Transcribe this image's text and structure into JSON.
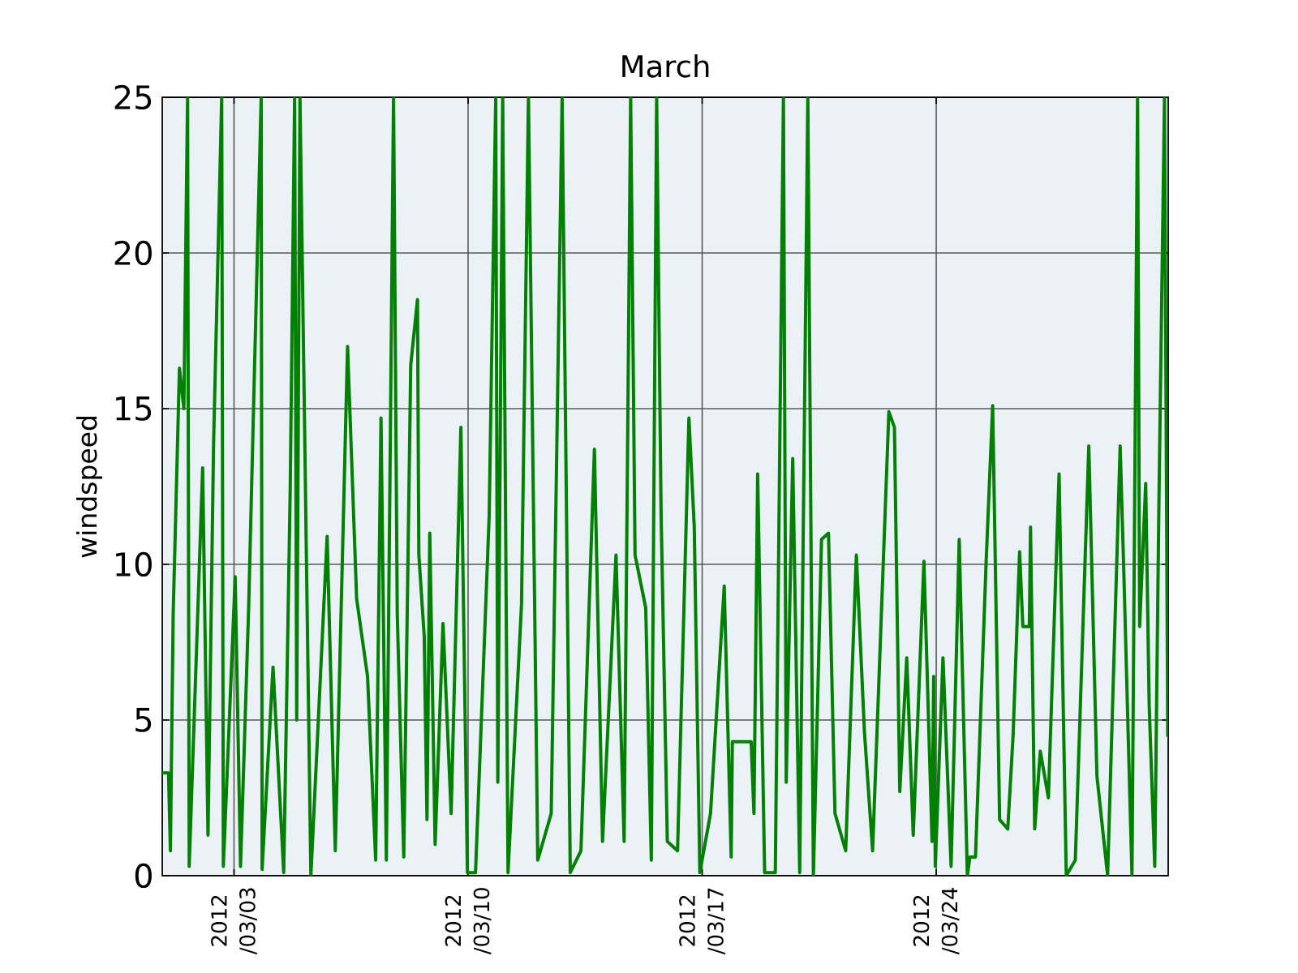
{
  "chart_data": {
    "type": "line",
    "title": "March",
    "ylabel": "windspeed",
    "color": "#008000",
    "grid": true,
    "xlim": [
      "2012-02-29T20:30",
      "2012-03-30T22:30"
    ],
    "xticks": [
      {
        "value": "2012-03-03",
        "label": "2012 /03/03"
      },
      {
        "value": "2012-03-10",
        "label": "2012 /03/10"
      },
      {
        "value": "2012-03-17",
        "label": "2012 /03/17"
      },
      {
        "value": "2012-03-24",
        "label": "2012 /03/24"
      }
    ],
    "ylim": [
      0,
      25
    ],
    "yticks": [
      0,
      5,
      10,
      15,
      20,
      25
    ],
    "x": [
      "2012-02-29T21:00",
      "2012-03-01T01:00",
      "2012-03-01T02:20",
      "2012-03-01T04:20",
      "2012-03-01T08:50",
      "2012-03-01T12:00",
      "2012-03-01T14:40",
      "2012-03-01T15:50",
      "2012-03-02T01:30",
      "2012-03-02T05:20",
      "2012-03-02T09:20",
      "2012-03-02T15:10",
      "2012-03-02T16:20",
      "2012-03-03T00:50",
      "2012-03-03T04:40",
      "2012-03-03T10:30",
      "2012-03-03T19:30",
      "2012-03-03T20:10",
      "2012-03-04T04:00",
      "2012-03-04T11:40",
      "2012-03-04T16:20",
      "2012-03-04T19:30",
      "2012-03-04T21:00",
      "2012-03-04T23:20",
      "2012-03-05T07:10",
      "2012-03-05T18:50",
      "2012-03-06T00:40",
      "2012-03-06T09:30",
      "2012-03-06T16:00",
      "2012-03-06T23:50",
      "2012-03-07T05:40",
      "2012-03-07T09:30",
      "2012-03-07T13:20",
      "2012-03-07T18:30",
      "2012-03-07T21:10",
      "2012-03-08T01:50",
      "2012-03-08T06:50",
      "2012-03-08T11:40",
      "2012-03-08T12:40",
      "2012-03-08T16:30",
      "2012-03-08T18:30",
      "2012-03-08T20:30",
      "2012-03-09T00:20",
      "2012-03-09T06:00",
      "2012-03-09T11:50",
      "2012-03-09T18:50",
      "2012-03-09T23:30",
      "2012-03-10T05:20",
      "2012-03-10T15:10",
      "2012-03-10T19:50",
      "2012-03-10T21:20",
      "2012-03-11T00:50",
      "2012-03-11T04:40",
      "2012-03-11T14:20",
      "2012-03-11T19:20",
      "2012-03-12T02:00",
      "2012-03-12T11:40",
      "2012-03-12T19:30",
      "2012-03-13T01:20",
      "2012-03-13T09:00",
      "2012-03-13T18:40",
      "2012-03-14T00:30",
      "2012-03-14T10:10",
      "2012-03-14T16:00",
      "2012-03-14T20:40",
      "2012-03-14T23:50",
      "2012-03-15T07:30",
      "2012-03-15T11:30",
      "2012-03-15T15:20",
      "2012-03-15T18:30",
      "2012-03-15T23:00",
      "2012-03-16T06:20",
      "2012-03-16T14:30",
      "2012-03-16T18:20",
      "2012-03-16T22:20",
      "2012-03-17T06:00",
      "2012-03-17T15:50",
      "2012-03-17T20:50",
      "2012-03-17T21:40",
      "2012-03-18T11:10",
      "2012-03-18T13:10",
      "2012-03-18T15:50",
      "2012-03-18T20:50",
      "2012-03-19T04:30",
      "2012-03-19T10:20",
      "2012-03-19T12:20",
      "2012-03-19T17:00",
      "2012-03-19T22:00",
      "2012-03-20T03:50",
      "2012-03-20T07:50",
      "2012-03-20T13:40",
      "2012-03-20T18:40",
      "2012-03-20T23:20",
      "2012-03-21T07:00",
      "2012-03-21T14:40",
      "2012-03-21T20:30",
      "2012-03-22T02:20",
      "2012-03-22T14:00",
      "2012-03-22T18:00",
      "2012-03-22T21:50",
      "2012-03-23T02:50",
      "2012-03-23T07:30",
      "2012-03-23T15:10",
      "2012-03-23T21:00",
      "2012-03-23T22:10",
      "2012-03-23T23:20",
      "2012-03-24T04:50",
      "2012-03-24T10:40",
      "2012-03-24T16:30",
      "2012-03-24T22:20",
      "2012-03-25T00:10",
      "2012-03-25T04:10",
      "2012-03-25T11:50",
      "2012-03-25T16:30",
      "2012-03-25T21:30",
      "2012-03-26T03:20",
      "2012-03-26T07:10",
      "2012-03-26T11:50",
      "2012-03-26T14:10",
      "2012-03-26T18:50",
      "2012-03-26T19:40",
      "2012-03-26T22:40",
      "2012-03-27T02:40",
      "2012-03-27T08:30",
      "2012-03-27T16:10",
      "2012-03-27T21:20",
      "2012-03-28T03:50",
      "2012-03-28T13:30",
      "2012-03-28T19:20",
      "2012-03-29T03:00",
      "2012-03-29T12:00",
      "2012-03-29T14:40",
      "2012-03-29T20:30",
      "2012-03-30T00:30",
      "2012-03-30T02:00",
      "2012-03-30T06:20",
      "2012-03-30T08:50",
      "2012-03-30T12:50",
      "2012-03-30T15:50",
      "2012-03-30T19:50",
      "2012-03-30T22:10"
    ],
    "values": [
      3.3,
      3.3,
      0.8,
      8.4,
      16.3,
      15.0,
      25,
      0.3,
      13.1,
      1.3,
      13.9,
      25,
      0.3,
      9.6,
      0.3,
      8.6,
      25,
      0.2,
      6.7,
      0.1,
      12.4,
      25,
      5,
      25,
      0,
      10.9,
      0.8,
      17.0,
      8.9,
      6.4,
      0.5,
      14.7,
      0.5,
      25,
      8.4,
      0.6,
      16.4,
      18.5,
      10.3,
      7.7,
      1.8,
      11.0,
      1.0,
      8.1,
      2.0,
      14.4,
      0.1,
      0.1,
      11.6,
      25,
      3,
      25,
      0.1,
      8.7,
      25,
      0.5,
      2.0,
      25,
      0.1,
      0.8,
      13.7,
      1.1,
      10.3,
      1.1,
      25,
      10.3,
      8.6,
      0.5,
      25,
      11.7,
      1.1,
      0.8,
      14.7,
      11.2,
      0.1,
      2.0,
      9.3,
      0.6,
      4.3,
      4.3,
      2.0,
      12.9,
      0.1,
      0.1,
      25,
      3,
      13.4,
      0.1,
      25,
      0,
      10.8,
      11.0,
      2.0,
      0.8,
      10.3,
      4.6,
      0.8,
      14.9,
      14.4,
      2.7,
      7.0,
      1.3,
      10.1,
      1.1,
      6.4,
      0.3,
      7.0,
      0.3,
      10.8,
      0,
      0.6,
      0.6,
      10.1,
      15.1,
      1.8,
      1.5,
      4.5,
      10.4,
      8.0,
      8.0,
      11.2,
      1.5,
      4.0,
      2.5,
      12.9,
      0,
      0.5,
      13.8,
      3.2,
      0,
      13.8,
      9.7,
      0,
      25,
      8,
      12.6,
      5.5,
      0.3,
      12.0,
      25,
      4.5
    ]
  }
}
